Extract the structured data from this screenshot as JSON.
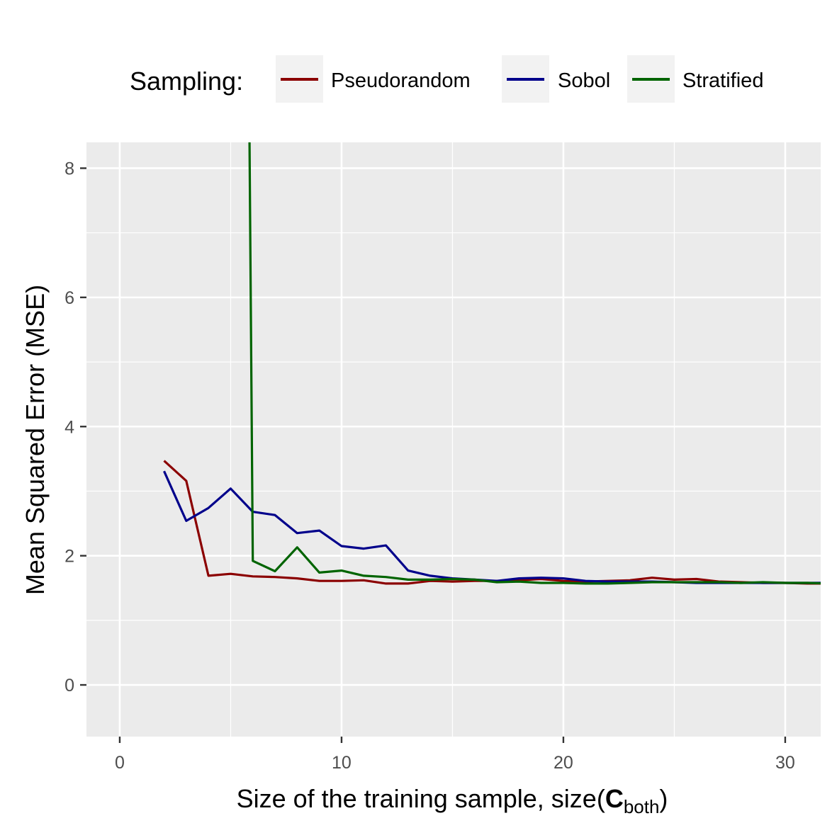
{
  "chart_data": {
    "type": "line",
    "legend": {
      "title": "Sampling:",
      "position": "top"
    },
    "xlabel": {
      "prefix": "Size of the training sample, size(",
      "main": "C",
      "subscript": "both",
      "suffix": ")"
    },
    "ylabel": "Mean Squared Error (MSE)",
    "xlim": [
      -1.5,
      31.6
    ],
    "ylim": [
      -0.8,
      8.4
    ],
    "x_ticks": [
      0,
      10,
      20,
      30
    ],
    "y_ticks": [
      0,
      2,
      4,
      6,
      8
    ],
    "grid": true,
    "background": "#ebebeb",
    "series": [
      {
        "name": "Pseudorandom",
        "color": "#8b0000",
        "x": [
          2,
          3,
          4,
          5,
          6,
          7,
          8,
          9,
          10,
          11,
          12,
          13,
          14,
          15,
          16,
          17,
          18,
          19,
          20,
          21,
          22,
          23,
          24,
          25,
          26,
          27,
          28,
          29,
          30,
          31,
          32
        ],
        "y": [
          3.47,
          3.16,
          1.69,
          1.72,
          1.68,
          1.67,
          1.65,
          1.61,
          1.61,
          1.62,
          1.57,
          1.57,
          1.61,
          1.6,
          1.61,
          1.61,
          1.62,
          1.64,
          1.61,
          1.6,
          1.61,
          1.62,
          1.66,
          1.63,
          1.64,
          1.6,
          1.59,
          1.58,
          1.58,
          1.57,
          1.57
        ]
      },
      {
        "name": "Sobol",
        "color": "#00008b",
        "x": [
          2,
          3,
          4,
          5,
          6,
          7,
          8,
          9,
          10,
          11,
          12,
          13,
          14,
          15,
          16,
          17,
          18,
          19,
          20,
          21,
          22,
          23,
          24,
          25,
          26,
          27,
          28,
          29,
          30,
          31,
          32
        ],
        "y": [
          3.31,
          2.54,
          2.74,
          3.04,
          2.68,
          2.63,
          2.35,
          2.39,
          2.15,
          2.11,
          2.16,
          1.77,
          1.69,
          1.65,
          1.63,
          1.61,
          1.65,
          1.66,
          1.65,
          1.61,
          1.6,
          1.6,
          1.6,
          1.59,
          1.58,
          1.58,
          1.58,
          1.58,
          1.58,
          1.58,
          1.58
        ]
      },
      {
        "name": "Stratified",
        "color": "#006400",
        "x": [
          5.85,
          6,
          7,
          8,
          9,
          10,
          11,
          12,
          13,
          14,
          15,
          16,
          17,
          18,
          19,
          20,
          21,
          22,
          23,
          24,
          25,
          26,
          27,
          28,
          29,
          30,
          31,
          32
        ],
        "y": [
          8.5,
          1.92,
          1.76,
          2.13,
          1.74,
          1.77,
          1.69,
          1.67,
          1.63,
          1.63,
          1.64,
          1.63,
          1.59,
          1.6,
          1.58,
          1.58,
          1.57,
          1.57,
          1.58,
          1.59,
          1.59,
          1.59,
          1.59,
          1.58,
          1.59,
          1.58,
          1.58,
          1.57
        ]
      }
    ]
  }
}
